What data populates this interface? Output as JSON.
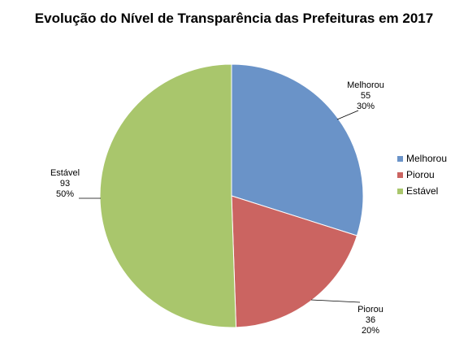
{
  "chart_data": {
    "type": "pie",
    "title": "Evolução do Nível de Transparência das Prefeituras em 2017",
    "slices": [
      {
        "name": "Melhorou",
        "value": 55,
        "percent": "30%",
        "color": "#6a93c8"
      },
      {
        "name": "Piorou",
        "value": 36,
        "percent": "20%",
        "color": "#cb6461"
      },
      {
        "name": "Estável",
        "value": 93,
        "percent": "50%",
        "color": "#a9c66c"
      }
    ],
    "legend_position": "right",
    "data_labels": true
  }
}
